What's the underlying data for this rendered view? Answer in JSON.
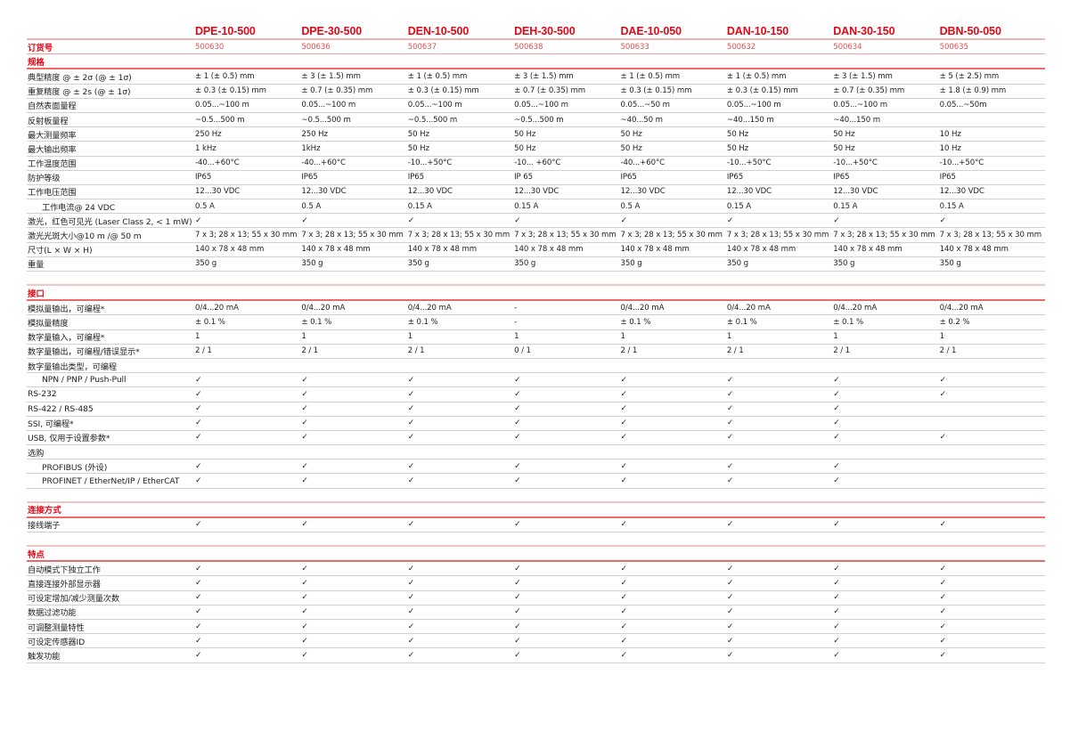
{
  "accent_color": "#e30613",
  "models": [
    "DPE-10-500",
    "DPE-30-500",
    "DEN-10-500",
    "DEH-30-500",
    "DAE-10-050",
    "DAN-10-150",
    "DAN-30-150",
    "DBN-50-050"
  ],
  "order": {
    "label": "订货号",
    "values": [
      "500630",
      "500636",
      "500637",
      "500638",
      "500633",
      "500632",
      "500634",
      "500635"
    ]
  },
  "check_symbol": "✓",
  "sections": [
    {
      "title": "规格",
      "rows": [
        {
          "label": "典型精度 @ ± 2σ (@ ± 1σ)",
          "values": [
            "± 1 (± 0.5) mm",
            "± 3 (± 1.5) mm",
            "± 1 (± 0.5) mm",
            "± 3 (± 1.5) mm",
            "± 1 (± 0.5) mm",
            "± 1 (± 0.5) mm",
            "± 3 (± 1.5) mm",
            "± 5 (± 2.5) mm"
          ]
        },
        {
          "label": "重复精度 @ ± 2s (@ ± 1σ)",
          "values": [
            "± 0.3 (± 0.15) mm",
            "± 0.7 (± 0.35) mm",
            "± 0.3 (± 0.15) mm",
            "± 0.7 (± 0.35) mm",
            "± 0.3 (± 0.15) mm",
            "± 0.3 (± 0.15) mm",
            "± 0.7 (± 0.35) mm",
            "± 1.8 (± 0.9) mm"
          ]
        },
        {
          "label": "自然表面量程",
          "values": [
            "0.05...~100 m",
            "0.05...~100 m",
            "0.05...~100 m",
            "0.05...~100 m",
            "0.05...~50 m",
            "0.05...~100 m",
            "0.05...~100 m",
            "0.05...~50m"
          ]
        },
        {
          "label": "反射板量程",
          "values": [
            " ~0.5...500 m",
            " ~0.5...500 m",
            " ~0.5...500 m",
            " ~0.5...500 m",
            "~40...50 m",
            "~40...150 m",
            "~40...150 m",
            ""
          ]
        },
        {
          "label": "最大测量频率",
          "values": [
            "250 Hz",
            "250 Hz",
            "50 Hz",
            "50 Hz",
            "50 Hz",
            "50 Hz",
            "50 Hz",
            "10 Hz"
          ]
        },
        {
          "label": "最大输出频率",
          "values": [
            "1 kHz",
            "1kHz",
            "50 Hz",
            "50 Hz",
            "50 Hz",
            "50 Hz",
            "50 Hz",
            "10 Hz"
          ]
        },
        {
          "label": "工作温度范围",
          "values": [
            "-40...+60°C",
            "-40...+60°C",
            "-10...+50°C",
            "-10... +60°C",
            "-40...+60°C",
            "-10...+50°C",
            "-10...+50°C",
            "-10...+50°C"
          ]
        },
        {
          "label": "防护等级",
          "values": [
            "IP65",
            "IP65",
            "IP65",
            "IP 65",
            "IP65",
            "IP65",
            "IP65",
            "IP65"
          ]
        },
        {
          "label": "工作电压范围",
          "values": [
            "12...30 VDC",
            "12...30 VDC",
            "12...30 VDC",
            "12...30 VDC",
            "12...30 VDC",
            "12...30 VDC",
            "12...30 VDC",
            "12...30 VDC"
          ]
        },
        {
          "label": "工作电流@ 24 VDC",
          "indent": true,
          "values": [
            "0.5 A",
            "0.5 A",
            "0.15 A",
            "0.15 A",
            "0.5 A",
            "0.15 A",
            "0.15 A",
            "0.15 A"
          ]
        },
        {
          "label": "激光，红色可见光 (Laser Class 2, < 1 mW)",
          "values": [
            "✓",
            "✓",
            "✓",
            "✓",
            "✓",
            "✓",
            "✓",
            "✓"
          ]
        },
        {
          "label": "激光光斑大小@10 m /@ 50 m",
          "values": [
            "7 x 3; 28 x 13; 55 x 30 mm",
            "7 x 3; 28 x 13; 55 x 30 mm",
            "7 x 3; 28 x 13; 55 x 30 mm",
            "7 x 3; 28 x 13; 55 x 30 mm",
            "7 x 3; 28 x 13; 55 x 30 mm",
            "7 x 3; 28 x 13; 55 x 30 mm",
            "7 x 3; 28 x 13; 55 x 30 mm",
            "7 x 3; 28 x 13; 55 x 30 mm"
          ]
        },
        {
          "label": "尺寸(L × W × H)",
          "values": [
            "140 x 78 x 48 mm",
            "140 x 78 x 48 mm",
            "140 x 78 x 48 mm",
            "140 x 78 x 48 mm",
            "140 x 78 x 48 mm",
            "140 x 78 x 48 mm",
            "140 x 78 x 48 mm",
            "140 x 78 x 48 mm"
          ]
        },
        {
          "label": "重量",
          "values": [
            "350 g",
            "350 g",
            "350 g",
            "350 g",
            "350 g",
            "350 g",
            "350 g",
            "350 g"
          ]
        }
      ]
    },
    {
      "title": "接口",
      "rows": [
        {
          "label": "模拟量输出，可编程*",
          "values": [
            "0/4...20 mA",
            "0/4...20 mA",
            "0/4...20 mA",
            "-",
            "0/4...20 mA",
            "0/4...20 mA",
            "0/4...20 mA",
            "0/4...20 mA"
          ]
        },
        {
          "label": "模拟量精度",
          "values": [
            "± 0.1 %",
            "± 0.1 %",
            "± 0.1 %",
            "-",
            "± 0.1 %",
            "± 0.1 %",
            "± 0.1 %",
            "± 0.2 %"
          ]
        },
        {
          "label": "数字量输入，可编程*",
          "values": [
            "1",
            "1",
            "1",
            "1",
            "1",
            "1",
            "1",
            "1"
          ]
        },
        {
          "label": "数字量输出，可编程/错误显示*",
          "values": [
            "2 / 1",
            "2 / 1",
            "2 / 1",
            "0 / 1",
            "2 / 1",
            "2 / 1",
            "2 / 1",
            "2 / 1"
          ]
        },
        {
          "label": "数字量输出类型，可编程",
          "values": [
            "",
            "",
            "",
            "",
            "",
            "",
            "",
            ""
          ]
        },
        {
          "label": "NPN / PNP / Push-Pull",
          "indent": true,
          "values": [
            "✓",
            "✓",
            "✓",
            "✓",
            "✓",
            "✓",
            "✓",
            "✓"
          ]
        },
        {
          "label": "RS-232",
          "values": [
            "✓",
            "✓",
            "✓",
            "✓",
            "✓",
            "✓",
            "✓",
            "✓"
          ]
        },
        {
          "label": "RS-422 / RS-485",
          "values": [
            "✓",
            "✓",
            "✓",
            "✓",
            "✓",
            "✓",
            "✓",
            ""
          ]
        },
        {
          "label": "SSI, 可编程*",
          "values": [
            "✓",
            "✓",
            "✓",
            "✓",
            "✓",
            "✓",
            "✓",
            ""
          ]
        },
        {
          "label": "USB, 仅用于设置参数*",
          "values": [
            "✓",
            "✓",
            "✓",
            "✓",
            "✓",
            "✓",
            "✓",
            "✓"
          ]
        },
        {
          "label": "选购",
          "values": [
            "",
            "",
            "",
            "",
            "",
            "",
            "",
            ""
          ]
        },
        {
          "label": "PROFIBUS (外设)",
          "indent": true,
          "values": [
            "✓",
            "✓",
            "✓",
            "✓",
            "✓",
            "✓",
            "✓",
            ""
          ]
        },
        {
          "label": "PROFINET / EtherNet/IP / EtherCAT",
          "indent": true,
          "values": [
            "✓",
            "✓",
            "✓",
            "✓",
            "✓",
            "✓",
            "✓",
            ""
          ]
        }
      ]
    },
    {
      "title": "连接方式",
      "rows": [
        {
          "label": "接线端子",
          "values": [
            "✓",
            "✓",
            "✓",
            "✓",
            "✓",
            "✓",
            "✓",
            "✓"
          ]
        }
      ]
    },
    {
      "title": "特点",
      "rows": [
        {
          "label": "自动模式下独立工作",
          "values": [
            "✓",
            "✓",
            "✓",
            "✓",
            "✓",
            "✓",
            "✓",
            "✓"
          ]
        },
        {
          "label": "直接连接外部显示器",
          "values": [
            "✓",
            "✓",
            "✓",
            "✓",
            "✓",
            "✓",
            "✓",
            "✓"
          ]
        },
        {
          "label": "可设定增加/减少测量次数",
          "values": [
            "✓",
            "✓",
            "✓",
            "✓",
            "✓",
            "✓",
            "✓",
            "✓"
          ]
        },
        {
          "label": "数据过滤功能",
          "values": [
            "✓",
            "✓",
            "✓",
            "✓",
            "✓",
            "✓",
            "✓",
            "✓"
          ]
        },
        {
          "label": "可调整测量特性",
          "values": [
            "✓",
            "✓",
            "✓",
            "✓",
            "✓",
            "✓",
            "✓",
            "✓"
          ]
        },
        {
          "label": "可设定传感器ID",
          "values": [
            "✓",
            "✓",
            "✓",
            "✓",
            "✓",
            "✓",
            "✓",
            "✓"
          ]
        },
        {
          "label": "触发功能",
          "values": [
            "✓",
            "✓",
            "✓",
            "✓",
            "✓",
            "✓",
            "✓",
            "✓"
          ]
        }
      ]
    }
  ]
}
